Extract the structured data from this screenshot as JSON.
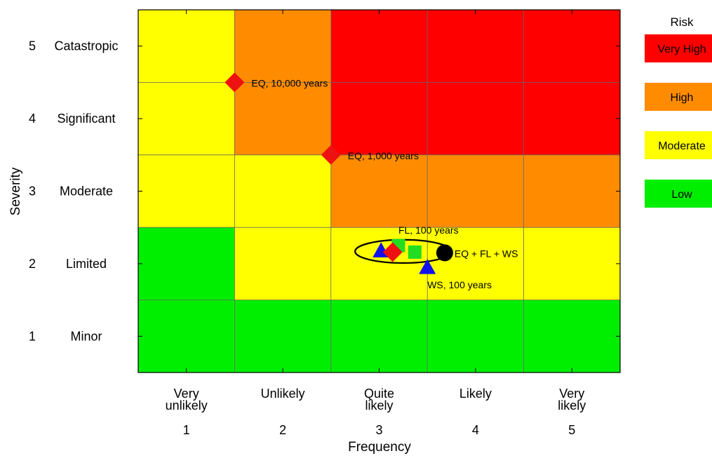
{
  "chart_data": {
    "type": "heatmap",
    "title": "",
    "xlabel": "Frequency",
    "ylabel": "Severity",
    "x_categories": [
      {
        "value": 1,
        "label": [
          "Very",
          "unlikely"
        ]
      },
      {
        "value": 2,
        "label": [
          "Unlikely"
        ]
      },
      {
        "value": 3,
        "label": [
          "Quite",
          "likely"
        ]
      },
      {
        "value": 4,
        "label": [
          "Likely"
        ]
      },
      {
        "value": 5,
        "label": [
          "Very",
          "likely"
        ]
      }
    ],
    "y_categories": [
      {
        "value": 1,
        "label": "Minor"
      },
      {
        "value": 2,
        "label": "Limited"
      },
      {
        "value": 3,
        "label": "Moderate"
      },
      {
        "value": 4,
        "label": "Significant"
      },
      {
        "value": 5,
        "label": "Catastropic"
      }
    ],
    "xlim": [
      0.5,
      5.5
    ],
    "ylim": [
      0.5,
      5.5
    ],
    "grid": true,
    "risk_matrix": [
      [
        "Low",
        "Low",
        "Low",
        "Low",
        "Low"
      ],
      [
        "Low",
        "Moderate",
        "Moderate",
        "Moderate",
        "Moderate"
      ],
      [
        "Moderate",
        "Moderate",
        "High",
        "High",
        "High"
      ],
      [
        "Moderate",
        "High",
        "Very High",
        "Very High",
        "Very High"
      ],
      [
        "Moderate",
        "High",
        "Very High",
        "Very High",
        "Very High"
      ]
    ],
    "legend": {
      "title": "Risk",
      "placement": "right",
      "items": [
        {
          "label": "Very High",
          "color": "#ff0000"
        },
        {
          "label": "High",
          "color": "#ff8c00"
        },
        {
          "label": "Moderate",
          "color": "#ffff00"
        },
        {
          "label": "Low",
          "color": "#00ee00"
        }
      ]
    },
    "points": [
      {
        "shape": "diamond",
        "color": "#ee1111",
        "x": 1.5,
        "y": 4.5,
        "label": "EQ, 10,000 years"
      },
      {
        "shape": "diamond",
        "color": "#ee1111",
        "x": 2.5,
        "y": 3.5,
        "label": "EQ, 1,000 years"
      },
      {
        "shape": "square",
        "color": "#22dd22",
        "x": 3.2,
        "y": 2.25,
        "label": "FL, 100 years"
      },
      {
        "shape": "triangle",
        "color": "#1111ee",
        "x": 3.5,
        "y": 1.95,
        "label": "WS, 100 years"
      },
      {
        "shape": "circle",
        "color": "#000000",
        "x": 3.68,
        "y": 2.15,
        "label": "EQ + FL + WS"
      },
      {
        "shape": "triangle",
        "color": "#1111ee",
        "x": 3.02,
        "y": 2.18,
        "label": ""
      },
      {
        "shape": "diamond",
        "color": "#ee1111",
        "x": 3.14,
        "y": 2.16,
        "label": ""
      },
      {
        "shape": "square",
        "color": "#22dd22",
        "x": 3.37,
        "y": 2.16,
        "label": ""
      }
    ],
    "ellipse": {
      "cx": 3.25,
      "cy": 2.17,
      "rx": 0.5,
      "ry": 0.16
    }
  }
}
